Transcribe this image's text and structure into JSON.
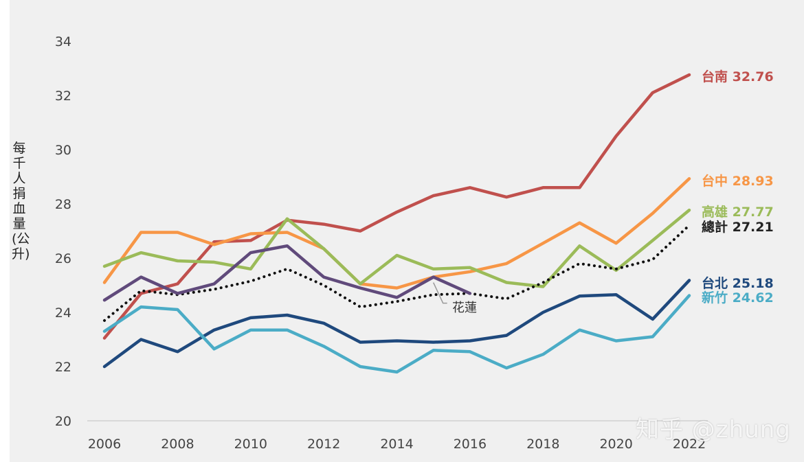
{
  "watermark": "知乎 @zhung",
  "chart_data": {
    "type": "line",
    "title": "",
    "xlabel": "",
    "ylabel": "每千人捐血量(公升)",
    "ylim": [
      20,
      34
    ],
    "yticks": [
      20,
      22,
      24,
      26,
      28,
      30,
      32,
      34
    ],
    "xticks": [
      2006,
      2008,
      2010,
      2012,
      2014,
      2016,
      2018,
      2020,
      2022
    ],
    "x": [
      2006,
      2007,
      2008,
      2009,
      2010,
      2011,
      2012,
      2013,
      2014,
      2015,
      2016,
      2017,
      2018,
      2019,
      2020,
      2021,
      2022
    ],
    "grid": false,
    "series": [
      {
        "name": "台南",
        "end_label": "台南 32.76",
        "color": "#c0504d",
        "style": "solid",
        "values": [
          23.05,
          24.7,
          25.05,
          26.6,
          26.65,
          27.4,
          27.25,
          27.0,
          27.7,
          28.3,
          28.6,
          28.25,
          28.6,
          28.6,
          30.5,
          32.1,
          32.76
        ]
      },
      {
        "name": "台中",
        "end_label": "台中 28.93",
        "color": "#f79646",
        "style": "solid",
        "values": [
          25.1,
          26.95,
          26.95,
          26.5,
          26.9,
          26.95,
          26.35,
          25.05,
          24.9,
          25.3,
          25.5,
          25.8,
          26.55,
          27.3,
          26.55,
          27.65,
          28.93
        ]
      },
      {
        "name": "高雄",
        "end_label": "高雄 27.77",
        "color": "#9bbb59",
        "style": "solid",
        "values": [
          25.7,
          26.2,
          25.9,
          25.85,
          25.6,
          27.45,
          26.35,
          25.05,
          26.1,
          25.6,
          25.65,
          25.1,
          24.95,
          26.45,
          25.55,
          26.65,
          27.77
        ]
      },
      {
        "name": "總計",
        "end_label": "總計 27.21",
        "color": "#111111",
        "style": "dotted",
        "values": [
          23.7,
          24.8,
          24.65,
          24.85,
          25.15,
          25.6,
          25.0,
          24.2,
          24.4,
          24.65,
          24.7,
          24.5,
          25.1,
          25.8,
          25.6,
          25.95,
          27.21
        ]
      },
      {
        "name": "台北",
        "end_label": "台北 25.18",
        "color": "#1f497d",
        "style": "solid",
        "values": [
          22.0,
          23.0,
          22.55,
          23.35,
          23.8,
          23.9,
          23.6,
          22.9,
          22.95,
          22.9,
          22.95,
          23.15,
          24.0,
          24.6,
          24.65,
          23.75,
          25.18
        ]
      },
      {
        "name": "新竹",
        "end_label": "新竹 24.62",
        "color": "#4bacc6",
        "style": "solid",
        "values": [
          23.3,
          24.2,
          24.1,
          22.65,
          23.35,
          23.35,
          22.75,
          22.0,
          21.8,
          22.6,
          22.55,
          21.95,
          22.45,
          23.35,
          22.95,
          23.1,
          24.62
        ]
      },
      {
        "name": "花蓮",
        "end_label": "",
        "annotation": "花蓮",
        "color": "#604a7b",
        "style": "solid",
        "values": [
          24.45,
          25.3,
          24.7,
          25.05,
          26.2,
          26.45,
          25.3,
          24.9,
          24.55,
          25.3,
          24.7,
          null,
          null,
          null,
          null,
          null,
          null
        ]
      }
    ]
  }
}
